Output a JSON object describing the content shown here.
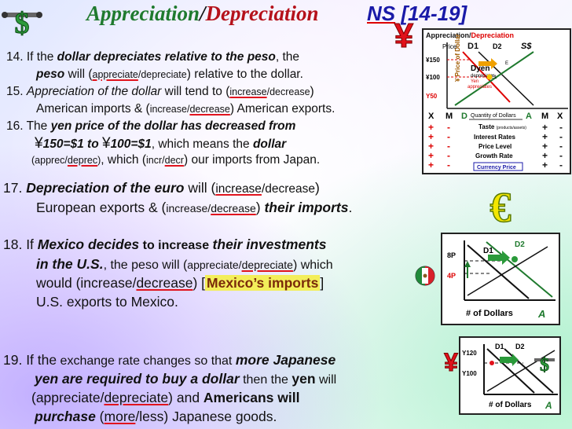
{
  "title": {
    "appreciation": "Appreciation",
    "slash": "/",
    "depreciation": "Depreciation",
    "ns": "NS",
    "range": "[14-19]"
  },
  "q14": {
    "num": "14. If the",
    "bold": "dollar depreciates relative to the peso",
    "rest": ", the",
    "peso": "peso",
    "will": " will (",
    "opt1": "appreciate",
    "sep": "/",
    "opt2": "depreciate",
    "end": ") relative to the dollar."
  },
  "q15": {
    "num": "15.",
    "it": "Appreciation of the dollar",
    "rest": " will tend to (",
    "opt1": "increase",
    "sep": "/",
    "opt2": "decrease",
    "close": ")",
    "line2a": "American imports & (",
    "opt3": "increase",
    "sep2": "/",
    "opt4": "decrease",
    "line2b": ") American exports."
  },
  "q16": {
    "num": "16. The",
    "bold": "yen price of  the dollar has  decreased  from",
    "yen1": "¥",
    "v1": "150=$1  to  ",
    "yen2": "¥",
    "v2": "100=$1",
    "rest": ",  which  means  the",
    "dollar": "dollar",
    "opt1": "apprec",
    "sep": "/",
    "opt2": "deprec",
    "mid": ", which (",
    "opt3": "incr",
    "sep2": "/",
    "opt4": "decr",
    "end": ") our imports from Japan."
  },
  "q17": {
    "num": "17.",
    "bold": "Depreciation of the euro",
    "will": "  will  (",
    "opt1": "increase",
    "sep": "/",
    "opt2": "decrease",
    "close": ")",
    "line2a": "European exports & (",
    "opt3": "increase",
    "sep2": "/",
    "opt4": "decrease",
    "line2b": ")",
    "bold2": "their imports",
    "dot": "."
  },
  "q18": {
    "num": "18. If",
    "bold": "Mexico decides",
    "mid": " to increase ",
    "bold2": "their investments",
    "bold3": "in the U.S.",
    "rest": ", the peso will (",
    "opt1": "appreciate",
    "sep": "/",
    "opt2": "depreciate",
    "end": ") which",
    "line3a": "would (",
    "opt3": "increase",
    "sep2": "/",
    "opt4": "decrease",
    "line3b": ") [",
    "hl": "Mexico’s imports",
    "line3c": "]",
    "line4": "U.S. exports to Mexico."
  },
  "q19": {
    "num": "19. If the",
    "rest": " exchange rate changes so that ",
    "bold": "more Japanese",
    "bold2": "yen are required to buy a dollar",
    "mid": " then the ",
    "yen": "yen",
    "will": " will",
    "line3a": "(",
    "opt1": "appreciate",
    "sep": "/",
    "opt2": "depreciate",
    "line3b": ")  and  ",
    "americans": "Americans  will",
    "purchase": "purchase",
    "line4a": " (",
    "opt3": "more",
    "sep2": "/",
    "opt4": "less",
    "line4b": ") Japanese goods."
  },
  "graph_top": {
    "title_a": "Appreciation",
    "title_slash": "/",
    "title_d": "Depreciation",
    "price": "Price",
    "d1": "D1",
    "d2": "D2",
    "s": "S$",
    "yaxis": "¥ Price of Dollar",
    "y150": "¥150",
    "y100": "¥100",
    "y50": "Y50",
    "dyen": "Dyen",
    "dep": "depreciates",
    "yen": "Yen",
    "apprec": "appreciates",
    "e1": "E1",
    "e": "E",
    "qty": "Quantity of Dollars"
  },
  "shifters": {
    "headers": [
      "X",
      "M",
      "D",
      "Quantity of Dollars",
      "A",
      "M",
      "X"
    ],
    "items": [
      "Taste",
      "Interest Rates",
      "Price Level",
      "Growth Rate"
    ],
    "taste_sub": "(products/assets)",
    "currency_price": "Currency Price",
    "left_x": [
      "+",
      "+",
      "+",
      "+",
      "+"
    ],
    "left_m": [
      "-",
      "-",
      "-",
      "-",
      "-"
    ],
    "right_m": [
      "+",
      "+",
      "+",
      "+",
      "+"
    ],
    "right_x": [
      "-",
      "-",
      "-",
      "-",
      "-"
    ]
  },
  "graph18": {
    "d1": "D1",
    "d2": "D2",
    "y8": "8P",
    "y4": "4P",
    "xlabel": "# of Dollars",
    "a": "A"
  },
  "graph19": {
    "d1": "D1",
    "d2": "D2",
    "y120": "Y120",
    "y100": "Y100",
    "xlabel": "# of Dollars",
    "a": "A"
  },
  "colors": {
    "green": "#1f7a2e",
    "red": "#b5121b",
    "blue": "#1a1aa8",
    "underline": "#e0141e"
  },
  "icons": [
    "dollar-plane-icon",
    "red-yen-icon",
    "euro-icon",
    "mexico-flag-icon",
    "yen-plane-icon"
  ]
}
